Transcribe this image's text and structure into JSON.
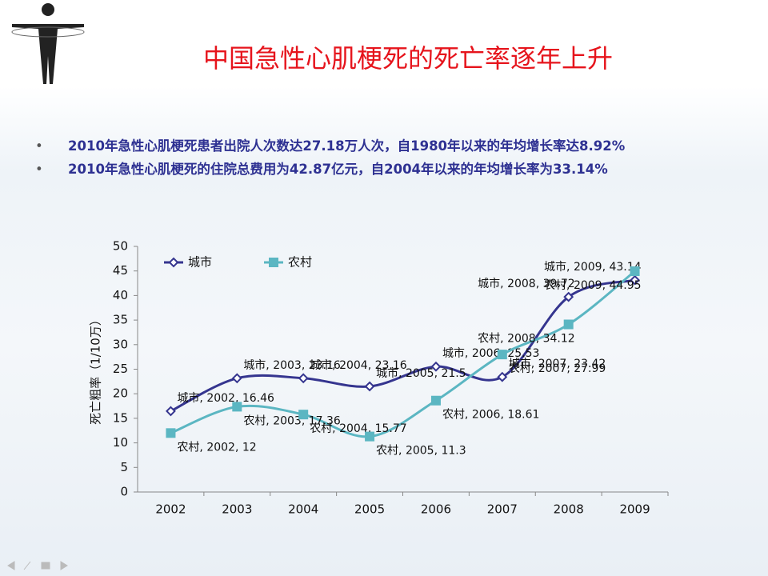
{
  "slide": {
    "title": "中国急性心肌梗死的死亡率逐年上升",
    "bullets": [
      "2010年急性心肌梗死患者出院人次数达27.18万人次，自1980年以来的年均增长率达8.92%",
      "2010年急性心肌梗死的住院总费用为42.87亿元，自2004年以来的年均增长率为33.14%"
    ]
  },
  "chart_data": {
    "type": "line",
    "y_label": "死亡粗率（1/10万）",
    "categories": [
      "2002",
      "2003",
      "2004",
      "2005",
      "2006",
      "2007",
      "2008",
      "2009"
    ],
    "series": [
      {
        "name": "城市",
        "color": "#35358f",
        "marker": "diamond",
        "values": [
          16.46,
          23.16,
          23.16,
          21.5,
          25.53,
          23.42,
          39.72,
          43.14
        ],
        "value_labels": [
          "城市, 2002, 16.46",
          "城市, 2003, 23.16",
          "城市, 2004, 23.16",
          "城市, 2005, 21.5",
          "城市, 2006, 25.53",
          "城市, 2007, 23.42",
          "城市, 2008, 39.72",
          "城市, 2009, 43.14"
        ]
      },
      {
        "name": "农村",
        "color": "#5bb6c2",
        "marker": "square",
        "values": [
          12,
          17.36,
          15.77,
          11.3,
          18.61,
          27.99,
          34.12,
          44.95
        ],
        "value_labels": [
          "农村, 2002, 12",
          "农村, 2003, 17.36",
          "农村, 2004, 15.77",
          "农村, 2005, 11.3",
          "农村, 2006, 18.61",
          "农村, 2007, 27.99",
          "农村, 2008, 34.12",
          "农村, 2009, 44.95"
        ]
      }
    ],
    "ylim": [
      0,
      50
    ],
    "yticks": [
      0,
      5,
      10,
      15,
      20,
      25,
      30,
      35,
      40,
      45,
      50
    ],
    "legend": "top"
  }
}
